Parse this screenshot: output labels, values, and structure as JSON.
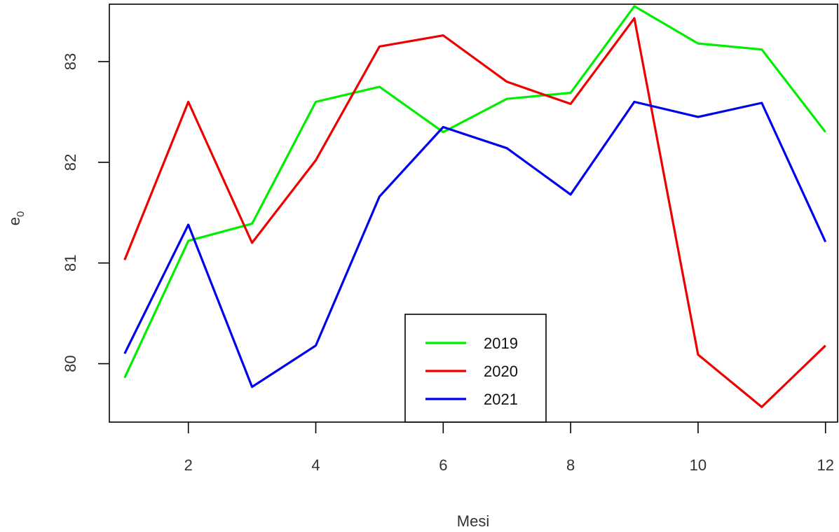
{
  "chart_data": {
    "type": "line",
    "title": "",
    "xlabel": "Mesi",
    "ylabel": "e",
    "ylabel_subscript": "0",
    "x": [
      1,
      2,
      3,
      4,
      5,
      6,
      7,
      8,
      9,
      10,
      11,
      12
    ],
    "xticks": [
      2,
      4,
      6,
      8,
      10,
      12
    ],
    "yticks": [
      80,
      81,
      82,
      83
    ],
    "xlim": [
      0.76,
      12.19
    ],
    "ylim": [
      79.42,
      83.57
    ],
    "grid": false,
    "legend_position": "bottom-center",
    "series": [
      {
        "name": "2019",
        "color": "#00ee00",
        "values": [
          79.86,
          81.22,
          81.39,
          82.6,
          82.75,
          82.3,
          82.63,
          82.69,
          83.55,
          83.18,
          83.12,
          82.3
        ]
      },
      {
        "name": "2020",
        "color": "#ee0000",
        "values": [
          81.03,
          82.6,
          81.2,
          82.02,
          83.15,
          83.26,
          82.8,
          82.58,
          83.43,
          80.09,
          79.57,
          80.18
        ]
      },
      {
        "name": "2021",
        "color": "#0000ee",
        "values": [
          80.1,
          81.38,
          79.77,
          80.18,
          81.66,
          82.35,
          82.14,
          81.68,
          82.6,
          82.45,
          82.59,
          81.21
        ]
      }
    ]
  }
}
